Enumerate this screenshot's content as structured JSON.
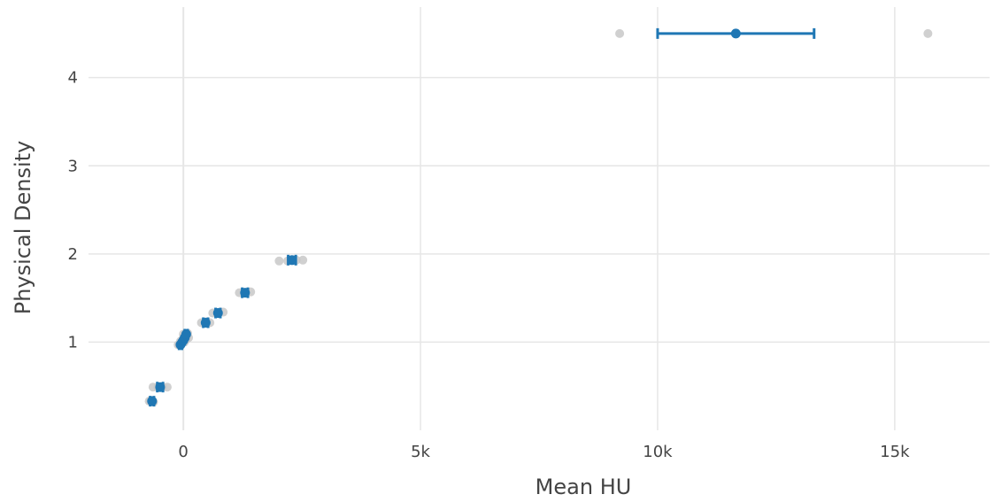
{
  "chart_data": {
    "type": "scatter",
    "title": "",
    "xlabel": "Mean HU",
    "ylabel": "Physical Density",
    "xlim": [
      -2000,
      17000
    ],
    "ylim": [
      0.0,
      4.8
    ],
    "grid": true,
    "legend": "none",
    "x_ticks": [
      {
        "value": 0,
        "label": "0"
      },
      {
        "value": 5000,
        "label": "5k"
      },
      {
        "value": 10000,
        "label": "10k"
      },
      {
        "value": 15000,
        "label": "15k"
      }
    ],
    "y_ticks": [
      {
        "value": 1,
        "label": "1"
      },
      {
        "value": 2,
        "label": "2"
      },
      {
        "value": 3,
        "label": "3"
      },
      {
        "value": 4,
        "label": "4"
      }
    ],
    "series": [
      {
        "role": "individual-measurements",
        "color": "#c8c8c8",
        "points": [
          {
            "x": -720,
            "y": 0.33
          },
          {
            "x": -640,
            "y": 0.33
          },
          {
            "x": -690,
            "y": 0.33
          },
          {
            "x": -630,
            "y": 0.32
          },
          {
            "x": -680,
            "y": 0.34
          },
          {
            "x": -640,
            "y": 0.49
          },
          {
            "x": -340,
            "y": 0.49
          },
          {
            "x": -540,
            "y": 0.49
          },
          {
            "x": -440,
            "y": 0.49
          },
          {
            "x": -490,
            "y": 0.49
          },
          {
            "x": -110,
            "y": 0.97
          },
          {
            "x": -40,
            "y": 0.98
          },
          {
            "x": 20,
            "y": 1.0
          },
          {
            "x": 60,
            "y": 1.03
          },
          {
            "x": 110,
            "y": 1.05
          },
          {
            "x": -60,
            "y": 1.01
          },
          {
            "x": 10,
            "y": 1.06
          },
          {
            "x": 70,
            "y": 1.08
          },
          {
            "x": -20,
            "y": 1.02
          },
          {
            "x": 40,
            "y": 1.04
          },
          {
            "x": 0,
            "y": 1.09
          },
          {
            "x": 90,
            "y": 1.1
          },
          {
            "x": 380,
            "y": 1.22
          },
          {
            "x": 560,
            "y": 1.22
          },
          {
            "x": 470,
            "y": 1.23
          },
          {
            "x": 620,
            "y": 1.33
          },
          {
            "x": 840,
            "y": 1.34
          },
          {
            "x": 720,
            "y": 1.33
          },
          {
            "x": 1180,
            "y": 1.56
          },
          {
            "x": 1420,
            "y": 1.57
          },
          {
            "x": 1300,
            "y": 1.56
          },
          {
            "x": 2020,
            "y": 1.92
          },
          {
            "x": 2520,
            "y": 1.93
          },
          {
            "x": 2200,
            "y": 1.92
          },
          {
            "x": 2380,
            "y": 1.93
          },
          {
            "x": 9200,
            "y": 4.5
          },
          {
            "x": 15700,
            "y": 4.5
          }
        ]
      },
      {
        "role": "mean-with-error",
        "color": "#1f77b4",
        "points": [
          {
            "x": -660,
            "y": 0.33,
            "xerr": 40
          },
          {
            "x": -490,
            "y": 0.49,
            "xerr": 60
          },
          {
            "x": -60,
            "y": 0.97,
            "xerr": 30
          },
          {
            "x": 0,
            "y": 1.02,
            "xerr": 30
          },
          {
            "x": 30,
            "y": 1.05,
            "xerr": 30
          },
          {
            "x": 60,
            "y": 1.09,
            "xerr": 30
          },
          {
            "x": 470,
            "y": 1.22,
            "xerr": 50
          },
          {
            "x": 730,
            "y": 1.33,
            "xerr": 50
          },
          {
            "x": 1300,
            "y": 1.56,
            "xerr": 60
          },
          {
            "x": 2290,
            "y": 1.93,
            "xerr": 80
          },
          {
            "x": 11650,
            "y": 4.5,
            "xerr": 1650
          }
        ]
      }
    ]
  }
}
